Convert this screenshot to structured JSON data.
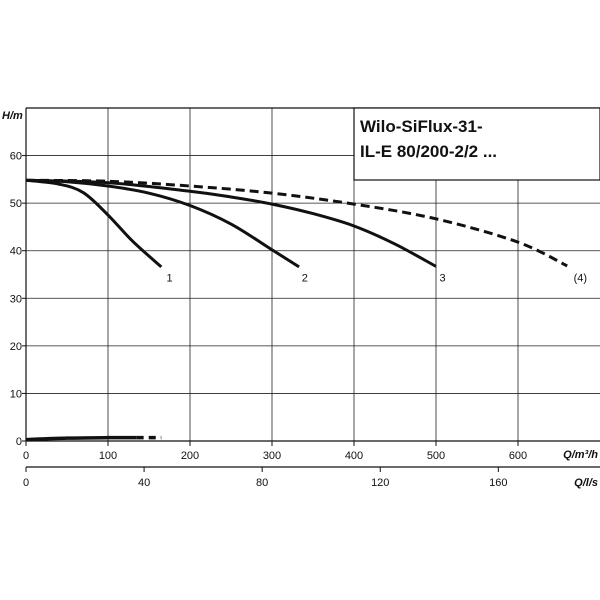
{
  "chart_data": {
    "type": "line",
    "title_lines": [
      "Wilo-SiFlux-31-",
      "IL-E 80/200-2/2 ..."
    ],
    "ylabel": "H/m",
    "xlabel_primary": "Q/m³/h",
    "xlabel_secondary": "Q/l/s",
    "x_ticks": [
      0,
      100,
      200,
      300,
      400,
      500,
      600
    ],
    "y_ticks": [
      0,
      10,
      20,
      30,
      40,
      50,
      60
    ],
    "x2_ticks": [
      0,
      40,
      80,
      120,
      160
    ],
    "xlim": [
      0,
      700
    ],
    "ylim": [
      0,
      70
    ],
    "x2lim": [
      0,
      194.44
    ],
    "grid": true,
    "series": [
      {
        "name": "1",
        "style": "solid",
        "x": [
          0,
          40,
          70,
          100,
          130,
          165
        ],
        "y": [
          54.8,
          54,
          52.2,
          47.5,
          42,
          36.6
        ]
      },
      {
        "name": "2",
        "style": "solid",
        "x": [
          0,
          50,
          100,
          150,
          200,
          250,
          300,
          333
        ],
        "y": [
          54.8,
          54.5,
          53.6,
          52.1,
          49.5,
          45.6,
          40.2,
          36.6
        ]
      },
      {
        "name": "3",
        "style": "solid",
        "x": [
          0,
          100,
          200,
          250,
          300,
          350,
          400,
          450,
          500
        ],
        "y": [
          54.8,
          54.3,
          52.5,
          51.3,
          49.8,
          47.8,
          45.2,
          41.4,
          36.7
        ]
      },
      {
        "name": "(4)",
        "style": "dashed",
        "x": [
          0,
          100,
          200,
          300,
          400,
          500,
          600,
          660
        ],
        "y": [
          54.8,
          54.6,
          53.6,
          52.1,
          49.8,
          46.7,
          41.8,
          36.8
        ]
      },
      {
        "name": "",
        "style": "solid-thick",
        "x": [
          0,
          50,
          100,
          135
        ],
        "y": [
          0.3,
          0.6,
          0.7,
          0.7
        ]
      },
      {
        "name": "",
        "style": "dashed-thick",
        "x": [
          135,
          165
        ],
        "y": [
          0.7,
          0.7
        ]
      }
    ],
    "curve_labels": [
      {
        "text": "1",
        "x": 175,
        "y": 33.5
      },
      {
        "text": "2",
        "x": 340,
        "y": 33.5
      },
      {
        "text": "3",
        "x": 508,
        "y": 33.5
      },
      {
        "text": "(4)",
        "x": 676,
        "y": 33.5
      }
    ]
  }
}
